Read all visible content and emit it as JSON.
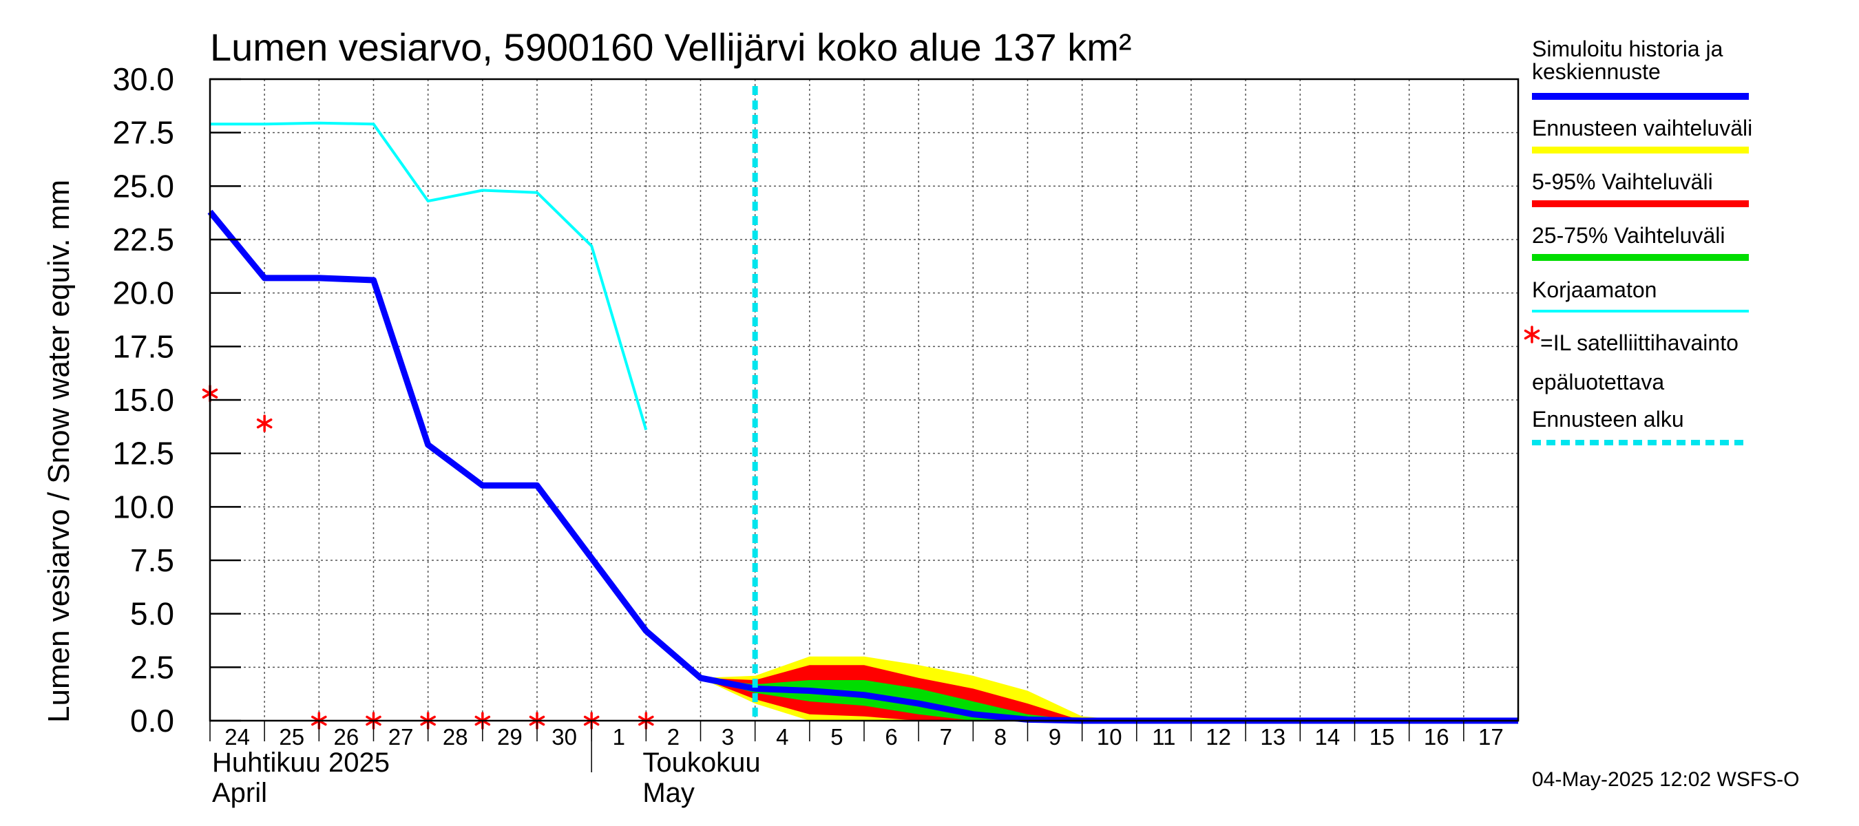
{
  "chart_data": {
    "type": "line",
    "title": "Lumen vesiarvo, 5900160 Vellijärvi koko alue 137 km²",
    "ylabel": "Lumen vesiarvo / Snow water equiv.    mm",
    "ylim": [
      0,
      30
    ],
    "yticks": [
      "0.0",
      "2.5",
      "5.0",
      "7.5",
      "10.0",
      "12.5",
      "15.0",
      "17.5",
      "20.0",
      "22.5",
      "25.0",
      "27.5",
      "30.0"
    ],
    "x_range_days": [
      0,
      24
    ],
    "x_ticks": [
      {
        "day": 0,
        "label": "24"
      },
      {
        "day": 1,
        "label": "25"
      },
      {
        "day": 2,
        "label": "26"
      },
      {
        "day": 3,
        "label": "27"
      },
      {
        "day": 4,
        "label": "28"
      },
      {
        "day": 5,
        "label": "29"
      },
      {
        "day": 6,
        "label": "30"
      },
      {
        "day": 7,
        "label": "1"
      },
      {
        "day": 8,
        "label": "2"
      },
      {
        "day": 9,
        "label": "3"
      },
      {
        "day": 10,
        "label": "4"
      },
      {
        "day": 11,
        "label": "5"
      },
      {
        "day": 12,
        "label": "6"
      },
      {
        "day": 13,
        "label": "7"
      },
      {
        "day": 14,
        "label": "8"
      },
      {
        "day": 15,
        "label": "9"
      },
      {
        "day": 16,
        "label": "10"
      },
      {
        "day": 17,
        "label": "11"
      },
      {
        "day": 18,
        "label": "12"
      },
      {
        "day": 19,
        "label": "13"
      },
      {
        "day": 20,
        "label": "14"
      },
      {
        "day": 21,
        "label": "15"
      },
      {
        "day": 22,
        "label": "16"
      },
      {
        "day": 23,
        "label": "17"
      }
    ],
    "month_labels": {
      "april_fi": "Huhtikuu  2025",
      "april_en": "April",
      "may_fi": "Toukokuu",
      "may_en": "May"
    },
    "forecast_start_day": 10,
    "series": [
      {
        "name": "Simuloitu historia ja keskiennuste",
        "color": "#0000ff",
        "points": [
          [
            0,
            23.8
          ],
          [
            1,
            20.7
          ],
          [
            2,
            20.7
          ],
          [
            3,
            20.6
          ],
          [
            4,
            12.9
          ],
          [
            5,
            11.0
          ],
          [
            6,
            11.0
          ],
          [
            7,
            7.6
          ],
          [
            8,
            4.2
          ],
          [
            9,
            2.0
          ],
          [
            10,
            1.5
          ],
          [
            11,
            1.4
          ],
          [
            12,
            1.2
          ],
          [
            13,
            0.8
          ],
          [
            14,
            0.3
          ],
          [
            15,
            0.05
          ],
          [
            16,
            0
          ],
          [
            17,
            0
          ],
          [
            24,
            0
          ]
        ]
      },
      {
        "name": "Korjaamaton",
        "color": "#00ffff",
        "points": [
          [
            0,
            27.9
          ],
          [
            1,
            27.9
          ],
          [
            2,
            27.95
          ],
          [
            3,
            27.9
          ],
          [
            4,
            24.3
          ],
          [
            5,
            24.8
          ],
          [
            6,
            24.7
          ],
          [
            7,
            22.2
          ],
          [
            8,
            13.6
          ]
        ]
      }
    ],
    "bands": [
      {
        "name": "Ennusteen vaihteluväli",
        "color": "#ffff00",
        "upper": [
          [
            9,
            2.0
          ],
          [
            10,
            2.1
          ],
          [
            11,
            3.0
          ],
          [
            12,
            3.0
          ],
          [
            13,
            2.6
          ],
          [
            14,
            2.1
          ],
          [
            15,
            1.4
          ],
          [
            16,
            0.2
          ],
          [
            17,
            0
          ],
          [
            24,
            0
          ]
        ],
        "lower": [
          [
            9,
            2.0
          ],
          [
            10,
            0.8
          ],
          [
            11,
            0
          ],
          [
            12,
            0
          ],
          [
            13,
            0
          ],
          [
            14,
            0
          ],
          [
            15,
            0
          ],
          [
            16,
            0
          ],
          [
            17,
            0
          ],
          [
            24,
            0
          ]
        ]
      },
      {
        "name": "5-95% Vaihteluväli",
        "color": "#ff0000",
        "upper": [
          [
            9,
            2.0
          ],
          [
            10,
            1.9
          ],
          [
            11,
            2.6
          ],
          [
            12,
            2.6
          ],
          [
            13,
            2.0
          ],
          [
            14,
            1.5
          ],
          [
            15,
            0.8
          ],
          [
            16,
            0
          ],
          [
            24,
            0
          ]
        ],
        "lower": [
          [
            9,
            2.0
          ],
          [
            10,
            1.0
          ],
          [
            11,
            0.3
          ],
          [
            12,
            0.2
          ],
          [
            13,
            0
          ],
          [
            14,
            0
          ],
          [
            15,
            0
          ],
          [
            16,
            0
          ],
          [
            24,
            0
          ]
        ]
      },
      {
        "name": "25-75% Vaihteluväli",
        "color": "#00dd00",
        "upper": [
          [
            9,
            2.0
          ],
          [
            10,
            1.7
          ],
          [
            11,
            1.9
          ],
          [
            12,
            1.9
          ],
          [
            13,
            1.5
          ],
          [
            14,
            0.9
          ],
          [
            15,
            0.3
          ],
          [
            16,
            0
          ],
          [
            24,
            0
          ]
        ],
        "lower": [
          [
            9,
            2.0
          ],
          [
            10,
            1.3
          ],
          [
            11,
            0.9
          ],
          [
            12,
            0.7
          ],
          [
            13,
            0.3
          ],
          [
            14,
            0
          ],
          [
            15,
            0
          ],
          [
            16,
            0
          ],
          [
            24,
            0
          ]
        ]
      }
    ],
    "observations": {
      "name": "=IL satelliittihavainto epäluotettava",
      "color": "#ff0000",
      "points": [
        [
          0,
          15.3
        ],
        [
          1,
          13.9
        ],
        [
          2,
          0
        ],
        [
          3,
          0
        ],
        [
          4,
          0
        ],
        [
          5,
          0
        ],
        [
          6,
          0
        ],
        [
          7,
          0
        ],
        [
          8,
          0
        ]
      ]
    },
    "legend": {
      "placement": "right",
      "items": [
        {
          "kind": "line",
          "label": "Simuloitu historia ja keskiennuste",
          "color": "#0000ff"
        },
        {
          "kind": "line",
          "label": "Ennusteen vaihteluväli",
          "color": "#ffff00"
        },
        {
          "kind": "line",
          "label": "5-95% Vaihteluväli",
          "color": "#ff0000"
        },
        {
          "kind": "line",
          "label": "25-75% Vaihteluväli",
          "color": "#00dd00"
        },
        {
          "kind": "line",
          "label": "Korjaamaton",
          "color": "#00ffff"
        },
        {
          "kind": "star",
          "label": "=IL satelliittihavainto",
          "label2": "epäluotettava",
          "color": "#ff0000"
        },
        {
          "kind": "dash",
          "label": "Ennusteen alku",
          "color": "#00e5ee"
        }
      ]
    },
    "grid": true,
    "footer": "04-May-2025 12:02 WSFS-O"
  }
}
